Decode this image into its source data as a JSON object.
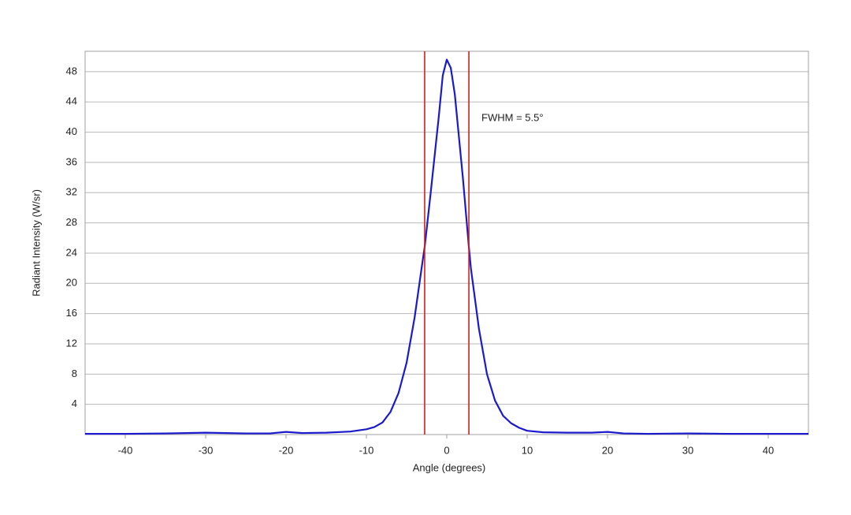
{
  "chart_data": {
    "type": "line",
    "x_label": "Angle (degrees)",
    "y_label": "Radiant Intensity (W/sr)",
    "annotation": "FWHM = 5.5°",
    "xlim": [
      -45,
      45
    ],
    "ylim": [
      0,
      50.7
    ],
    "xticks": [
      -40,
      -30,
      -20,
      -10,
      0,
      10,
      20,
      30,
      40
    ],
    "yticks": [
      4,
      8,
      12,
      16,
      20,
      24,
      28,
      32,
      36,
      40,
      44,
      48
    ],
    "grid": true,
    "vlines": [
      -2.75,
      2.75
    ],
    "vline_color": "#d42020",
    "x": [
      -45,
      -40,
      -35,
      -30,
      -25,
      -22,
      -20,
      -18,
      -15,
      -12,
      -10,
      -9,
      -8,
      -7,
      -6,
      -5,
      -4,
      -3,
      -2.75,
      -2,
      -1,
      -0.5,
      0,
      0.5,
      1,
      2,
      2.75,
      3,
      4,
      5,
      6,
      7,
      8,
      9,
      10,
      12,
      15,
      18,
      20,
      22,
      25,
      30,
      35,
      40,
      45
    ],
    "series": [
      {
        "color": "#1a1acc",
        "values": [
          0.1,
          0.1,
          0.15,
          0.25,
          0.15,
          0.15,
          0.35,
          0.2,
          0.25,
          0.4,
          0.7,
          1.0,
          1.6,
          3.0,
          5.5,
          9.5,
          15.5,
          23,
          24.8,
          32,
          42,
          47.5,
          49.6,
          48.5,
          45,
          34,
          24.8,
          22,
          14,
          8,
          4.5,
          2.5,
          1.5,
          0.9,
          0.5,
          0.3,
          0.25,
          0.25,
          0.35,
          0.15,
          0.1,
          0.15,
          0.1,
          0.1,
          0.1
        ]
      }
    ]
  }
}
